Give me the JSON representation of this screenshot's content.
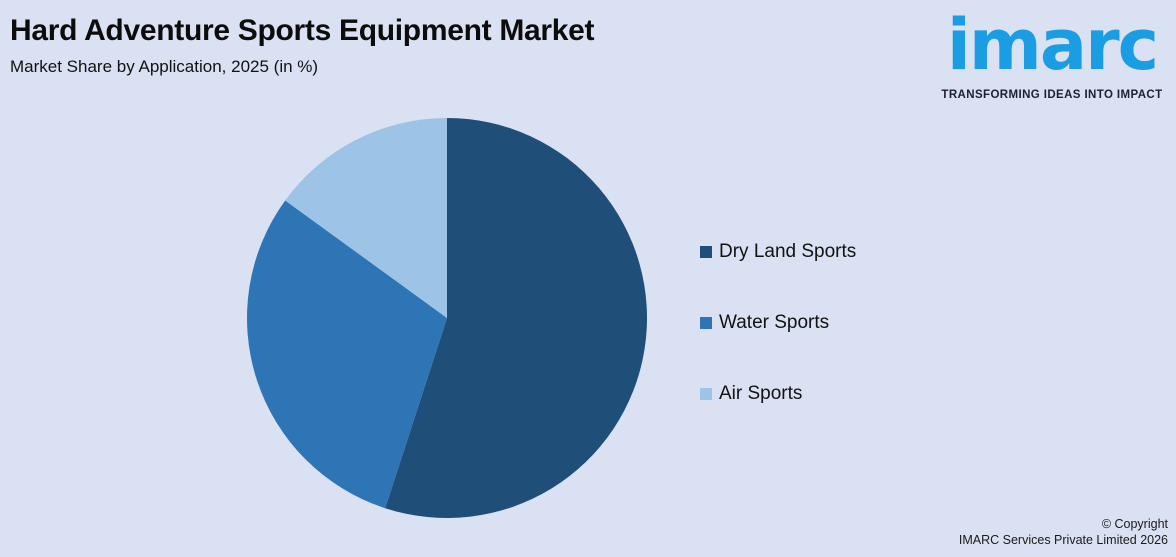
{
  "theme": {
    "background": "#D9E1F2",
    "text_primary": "#0C0C0C"
  },
  "chart_data": {
    "type": "pie",
    "title": "Hard Adventure Sports Equipment Market",
    "subtitle": "Market Share by Application, 2025 (in %)",
    "categories": [
      "Dry Land Sports",
      "Water Sports",
      "Air Sports"
    ],
    "values": [
      55,
      30,
      15
    ],
    "unit": "%",
    "colors": [
      "#1F4E79",
      "#2E75B6",
      "#9DC3E6"
    ],
    "start_angle_deg": 0,
    "direction": "clockwise",
    "legend_position": "right",
    "data_labels": false
  },
  "logo": {
    "brand": "imarc",
    "tagline": "TRANSFORMING IDEAS INTO IMPACT",
    "brand_color": "#1B9DE4",
    "tagline_color": "#1A2130"
  },
  "footer": {
    "copyright_line1": "© Copyright",
    "copyright_line2": "IMARC Services Private Limited 2026"
  }
}
